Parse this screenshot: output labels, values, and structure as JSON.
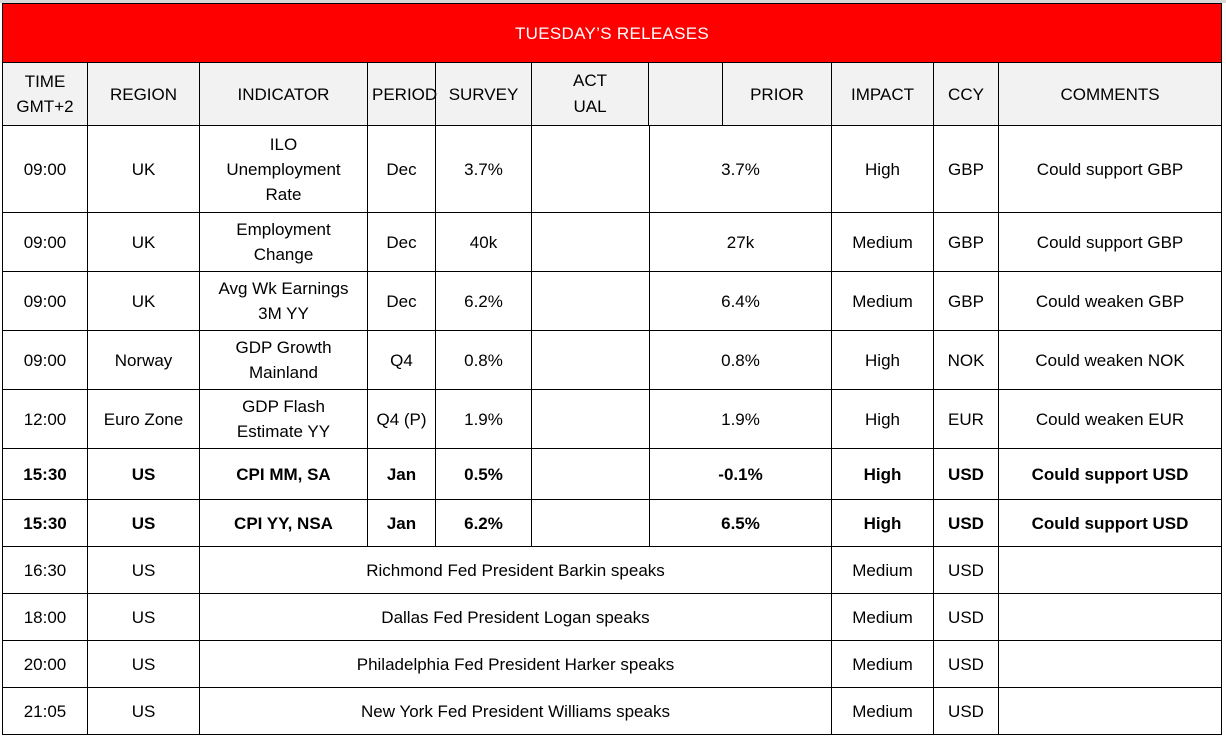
{
  "title": "TUESDAY’S RELEASES",
  "columns": [
    {
      "key": "time",
      "label": "TIME\nGMT+2",
      "lines": [
        "TIME",
        "GMT+2"
      ]
    },
    {
      "key": "region",
      "label": "REGION",
      "lines": [
        "REGION"
      ]
    },
    {
      "key": "indicator",
      "label": "INDICATOR",
      "lines": [
        "INDICATOR"
      ]
    },
    {
      "key": "period",
      "label": "PERIOD",
      "lines": [
        "PERIOD"
      ]
    },
    {
      "key": "survey",
      "label": "SURVEY",
      "lines": [
        "SURVEY"
      ]
    },
    {
      "key": "actual",
      "label": "ACT\nUAL",
      "lines": [
        "ACT",
        "UAL"
      ]
    },
    {
      "key": "prior",
      "label": "PRIOR",
      "lines": [
        "PRIOR"
      ]
    },
    {
      "key": "impact",
      "label": "IMPACT",
      "lines": [
        "IMPACT"
      ]
    },
    {
      "key": "ccy",
      "label": "CCY",
      "lines": [
        "CCY"
      ]
    },
    {
      "key": "comments",
      "label": "COMMENTS",
      "lines": [
        "COMMENTS"
      ]
    }
  ],
  "rows": [
    {
      "time": "09:00",
      "region": "UK",
      "indicator": [
        "ILO",
        "Unemployment",
        "Rate"
      ],
      "period": "Dec",
      "survey": "3.7%",
      "actual": "",
      "prior": "3.7%",
      "impact": "High",
      "ccy": "GBP",
      "comments": "Could support GBP",
      "bold": false
    },
    {
      "time": "09:00",
      "region": "UK",
      "indicator": [
        "Employment",
        "Change"
      ],
      "period": "Dec",
      "survey": "40k",
      "actual": "",
      "prior": "27k",
      "impact": "Medium",
      "ccy": "GBP",
      "comments": "Could support GBP",
      "bold": false
    },
    {
      "time": "09:00",
      "region": "UK",
      "indicator": [
        "Avg Wk Earnings",
        "3M YY"
      ],
      "period": "Dec",
      "survey": "6.2%",
      "actual": "",
      "prior": "6.4%",
      "impact": "Medium",
      "ccy": "GBP",
      "comments": "Could weaken GBP",
      "bold": false
    },
    {
      "time": "09:00",
      "region": "Norway",
      "indicator": [
        "GDP Growth",
        "Mainland"
      ],
      "period": "Q4",
      "survey": "0.8%",
      "actual": "",
      "prior": "0.8%",
      "impact": "High",
      "ccy": "NOK",
      "comments": "Could weaken NOK",
      "bold": false
    },
    {
      "time": "12:00",
      "region": "Euro Zone",
      "indicator": [
        "GDP Flash",
        "Estimate YY"
      ],
      "period": "Q4 (P)",
      "survey": "1.9%",
      "actual": "",
      "prior": "1.9%",
      "impact": "High",
      "ccy": "EUR",
      "comments": "Could weaken EUR",
      "bold": false
    },
    {
      "time": "15:30",
      "region": "US",
      "indicator": [
        "CPI MM, SA"
      ],
      "period": "Jan",
      "survey": "0.5%",
      "actual": "",
      "prior": "-0.1%",
      "impact": "High",
      "ccy": "USD",
      "comments": "Could support USD",
      "bold": true
    },
    {
      "time": "15:30",
      "region": "US",
      "indicator": [
        "CPI YY, NSA"
      ],
      "period": "Jan",
      "survey": "6.2%",
      "actual": "",
      "prior": "6.5%",
      "impact": "High",
      "ccy": "USD",
      "comments": "Could support USD",
      "bold": true
    }
  ],
  "speeches": [
    {
      "time": "16:30",
      "region": "US",
      "event": "Richmond Fed President Barkin speaks",
      "impact": "Medium",
      "ccy": "USD",
      "comments": ""
    },
    {
      "time": "18:00",
      "region": "US",
      "event": "Dallas Fed President Logan speaks",
      "impact": "Medium",
      "ccy": "USD",
      "comments": ""
    },
    {
      "time": "20:00",
      "region": "US",
      "event": "Philadelphia Fed President Harker speaks",
      "impact": "Medium",
      "ccy": "USD",
      "comments": ""
    },
    {
      "time": "21:05",
      "region": "US",
      "event": "New York Fed President Williams speaks",
      "impact": "Medium",
      "ccy": "USD",
      "comments": ""
    }
  ],
  "colors": {
    "title_bg": "#ff0000",
    "title_text": "#ffffff",
    "header_bg": "#f2f2f2",
    "border": "#000000"
  }
}
